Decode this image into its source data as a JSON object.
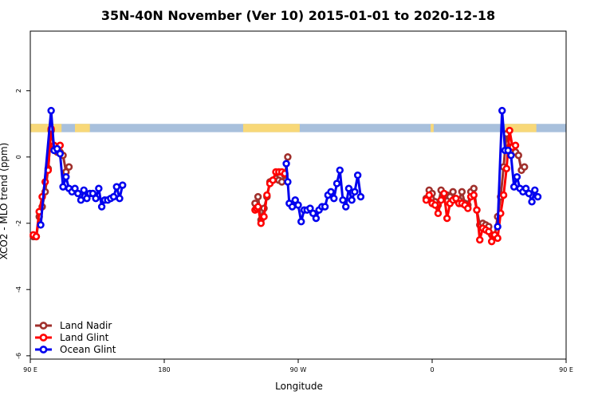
{
  "chart_data": {
    "type": "line",
    "title": "35N-40N November (Ver 10)   2015-01-01 to 2020-12-18",
    "xlabel": "Longitude",
    "ylabel": "XCO2 - MLO trend (ppm)",
    "xlim": [
      90,
      450
    ],
    "ylim": [
      -6.1,
      3.8
    ],
    "x_ticks": [
      {
        "value": 90,
        "label": "90 E"
      },
      {
        "value": 180,
        "label": "180"
      },
      {
        "value": 270,
        "label": "90 W"
      },
      {
        "value": 360,
        "label": "0"
      },
      {
        "value": 450,
        "label": "90 E"
      }
    ],
    "y_ticks": [
      {
        "value": -6,
        "label": "-6"
      },
      {
        "value": -4,
        "label": "-4"
      },
      {
        "value": -2,
        "label": "-2"
      },
      {
        "value": 0,
        "label": "0"
      },
      {
        "value": 2,
        "label": "2"
      }
    ],
    "land_band": {
      "y_range": [
        0.75,
        1.0
      ],
      "land_color": "#f8d878",
      "ocean_color": "#a8c0dc",
      "land_segments": [
        [
          90,
          111
        ],
        [
          120,
          130
        ],
        [
          233,
          271
        ],
        [
          359,
          361
        ],
        [
          409,
          430
        ]
      ]
    },
    "legend": {
      "position": "bottom-left",
      "entries": [
        {
          "name": "Land Nadir",
          "color": "#a0302c"
        },
        {
          "name": "Land Glint",
          "color": "#ff0000"
        },
        {
          "name": "Ocean Glint",
          "color": "#0000ee"
        }
      ]
    },
    "series": [
      {
        "name": "Land Nadir",
        "color": "#a0302c",
        "segments": [
          [
            [
              92,
              -2.4
            ],
            [
              94,
              -2.4
            ],
            [
              96,
              -1.8
            ],
            [
              98,
              -1.5
            ],
            [
              100,
              -1.05
            ],
            [
              102,
              -0.35
            ],
            [
              104,
              0.8
            ],
            [
              106,
              0.3
            ],
            [
              108,
              0.15
            ],
            [
              110,
              0.15
            ],
            [
              112,
              0.05
            ],
            [
              114,
              -0.45
            ],
            [
              116,
              -0.3
            ]
          ],
          [
            [
              241,
              -1.4
            ],
            [
              242,
              -1.55
            ],
            [
              243,
              -1.2
            ],
            [
              245,
              -1.9
            ],
            [
              247,
              -1.55
            ],
            [
              249,
              -1.2
            ],
            [
              251,
              -0.75
            ],
            [
              253,
              -0.7
            ],
            [
              255,
              -0.65
            ],
            [
              257,
              -0.7
            ],
            [
              259,
              -0.75
            ],
            [
              261,
              -0.55
            ],
            [
              263,
              0.0
            ]
          ],
          [
            [
              356,
              -1.25
            ],
            [
              358,
              -1.0
            ],
            [
              360,
              -1.1
            ],
            [
              362,
              -1.35
            ],
            [
              364,
              -1.45
            ],
            [
              366,
              -1.0
            ],
            [
              368,
              -1.2
            ],
            [
              370,
              -1.15
            ],
            [
              372,
              -1.2
            ],
            [
              374,
              -1.05
            ],
            [
              376,
              -1.3
            ],
            [
              378,
              -1.3
            ],
            [
              380,
              -1.05
            ],
            [
              382,
              -1.4
            ],
            [
              384,
              -1.45
            ],
            [
              386,
              -1.05
            ],
            [
              388,
              -0.95
            ],
            [
              390,
              -1.6
            ],
            [
              392,
              -2.05
            ],
            [
              394,
              -2.0
            ],
            [
              396,
              -2.05
            ],
            [
              398,
              -2.1
            ],
            [
              400,
              -2.35
            ],
            [
              402,
              -2.4
            ],
            [
              404,
              -1.8
            ],
            [
              406,
              -1.2
            ],
            [
              408,
              -0.3
            ],
            [
              410,
              0.7
            ],
            [
              412,
              0.3
            ],
            [
              414,
              0.2
            ],
            [
              416,
              0.15
            ],
            [
              418,
              0.05
            ],
            [
              420,
              -0.4
            ],
            [
              422,
              -0.3
            ]
          ]
        ]
      },
      {
        "name": "Land Glint",
        "color": "#ff0000",
        "segments": [
          [
            [
              92,
              -2.35
            ],
            [
              94,
              -2.4
            ],
            [
              96,
              -1.65
            ],
            [
              98,
              -1.2
            ],
            [
              100,
              -0.75
            ],
            [
              102,
              -0.4
            ],
            [
              104,
              0.85
            ],
            [
              106,
              0.35
            ],
            [
              108,
              0.2
            ],
            [
              110,
              0.35
            ]
          ],
          [
            [
              241,
              -1.6
            ],
            [
              242,
              -1.55
            ],
            [
              243,
              -1.5
            ],
            [
              245,
              -2.0
            ],
            [
              247,
              -1.8
            ],
            [
              249,
              -1.15
            ],
            [
              251,
              -0.8
            ],
            [
              253,
              -0.7
            ],
            [
              255,
              -0.45
            ],
            [
              257,
              -0.45
            ],
            [
              259,
              -0.45
            ],
            [
              261,
              -0.5
            ]
          ],
          [
            [
              356,
              -1.3
            ],
            [
              358,
              -1.15
            ],
            [
              360,
              -1.4
            ],
            [
              362,
              -1.45
            ],
            [
              364,
              -1.7
            ],
            [
              366,
              -1.3
            ],
            [
              368,
              -1.1
            ],
            [
              370,
              -1.85
            ],
            [
              372,
              -1.4
            ],
            [
              374,
              -1.3
            ],
            [
              376,
              -1.25
            ],
            [
              378,
              -1.4
            ],
            [
              380,
              -1.4
            ],
            [
              382,
              -1.45
            ],
            [
              384,
              -1.55
            ],
            [
              386,
              -1.2
            ],
            [
              388,
              -1.15
            ],
            [
              390,
              -1.6
            ],
            [
              392,
              -2.5
            ],
            [
              394,
              -2.15
            ],
            [
              396,
              -2.2
            ],
            [
              398,
              -2.25
            ],
            [
              400,
              -2.55
            ],
            [
              402,
              -2.35
            ],
            [
              404,
              -2.45
            ],
            [
              406,
              -1.7
            ],
            [
              408,
              -1.15
            ],
            [
              410,
              -0.35
            ],
            [
              412,
              0.8
            ],
            [
              414,
              0.3
            ],
            [
              416,
              0.35
            ]
          ]
        ]
      },
      {
        "name": "Ocean Glint",
        "color": "#0000ee",
        "segments": [
          [
            [
              97,
              -2.05
            ],
            [
              104,
              1.4
            ],
            [
              106,
              0.2
            ],
            [
              108,
              0.25
            ],
            [
              110,
              0.1
            ],
            [
              112,
              -0.9
            ],
            [
              114,
              -0.6
            ],
            [
              116,
              -0.95
            ],
            [
              118,
              -1.05
            ],
            [
              120,
              -0.95
            ],
            [
              122,
              -1.1
            ],
            [
              124,
              -1.3
            ],
            [
              126,
              -1.0
            ],
            [
              128,
              -1.25
            ],
            [
              130,
              -1.1
            ],
            [
              132,
              -1.1
            ],
            [
              134,
              -1.25
            ],
            [
              136,
              -0.95
            ],
            [
              138,
              -1.5
            ],
            [
              140,
              -1.3
            ],
            [
              142,
              -1.3
            ],
            [
              144,
              -1.25
            ],
            [
              146,
              -1.2
            ],
            [
              148,
              -0.9
            ],
            [
              150,
              -1.25
            ],
            [
              152,
              -0.85
            ]
          ],
          [
            [
              262,
              -0.2
            ],
            [
              263,
              -0.75
            ],
            [
              264,
              -1.4
            ],
            [
              266,
              -1.5
            ],
            [
              268,
              -1.3
            ],
            [
              270,
              -1.45
            ],
            [
              272,
              -1.95
            ],
            [
              274,
              -1.6
            ],
            [
              276,
              -1.6
            ],
            [
              278,
              -1.55
            ],
            [
              280,
              -1.7
            ],
            [
              282,
              -1.85
            ],
            [
              284,
              -1.6
            ],
            [
              286,
              -1.5
            ],
            [
              288,
              -1.5
            ],
            [
              290,
              -1.15
            ],
            [
              292,
              -1.05
            ],
            [
              294,
              -1.25
            ],
            [
              296,
              -0.8
            ],
            [
              298,
              -0.4
            ],
            [
              300,
              -1.3
            ],
            [
              302,
              -1.5
            ],
            [
              304,
              -0.95
            ],
            [
              306,
              -1.3
            ],
            [
              308,
              -1.05
            ],
            [
              310,
              -0.55
            ],
            [
              312,
              -1.2
            ]
          ],
          [
            [
              404,
              -2.1
            ],
            [
              407,
              1.4
            ],
            [
              409,
              0.2
            ],
            [
              411,
              0.2
            ],
            [
              413,
              0.05
            ],
            [
              415,
              -0.9
            ],
            [
              417,
              -0.6
            ],
            [
              419,
              -0.95
            ],
            [
              421,
              -1.05
            ],
            [
              423,
              -0.95
            ],
            [
              425,
              -1.1
            ],
            [
              427,
              -1.35
            ],
            [
              429,
              -1.0
            ],
            [
              431,
              -1.2
            ]
          ]
        ]
      }
    ]
  }
}
